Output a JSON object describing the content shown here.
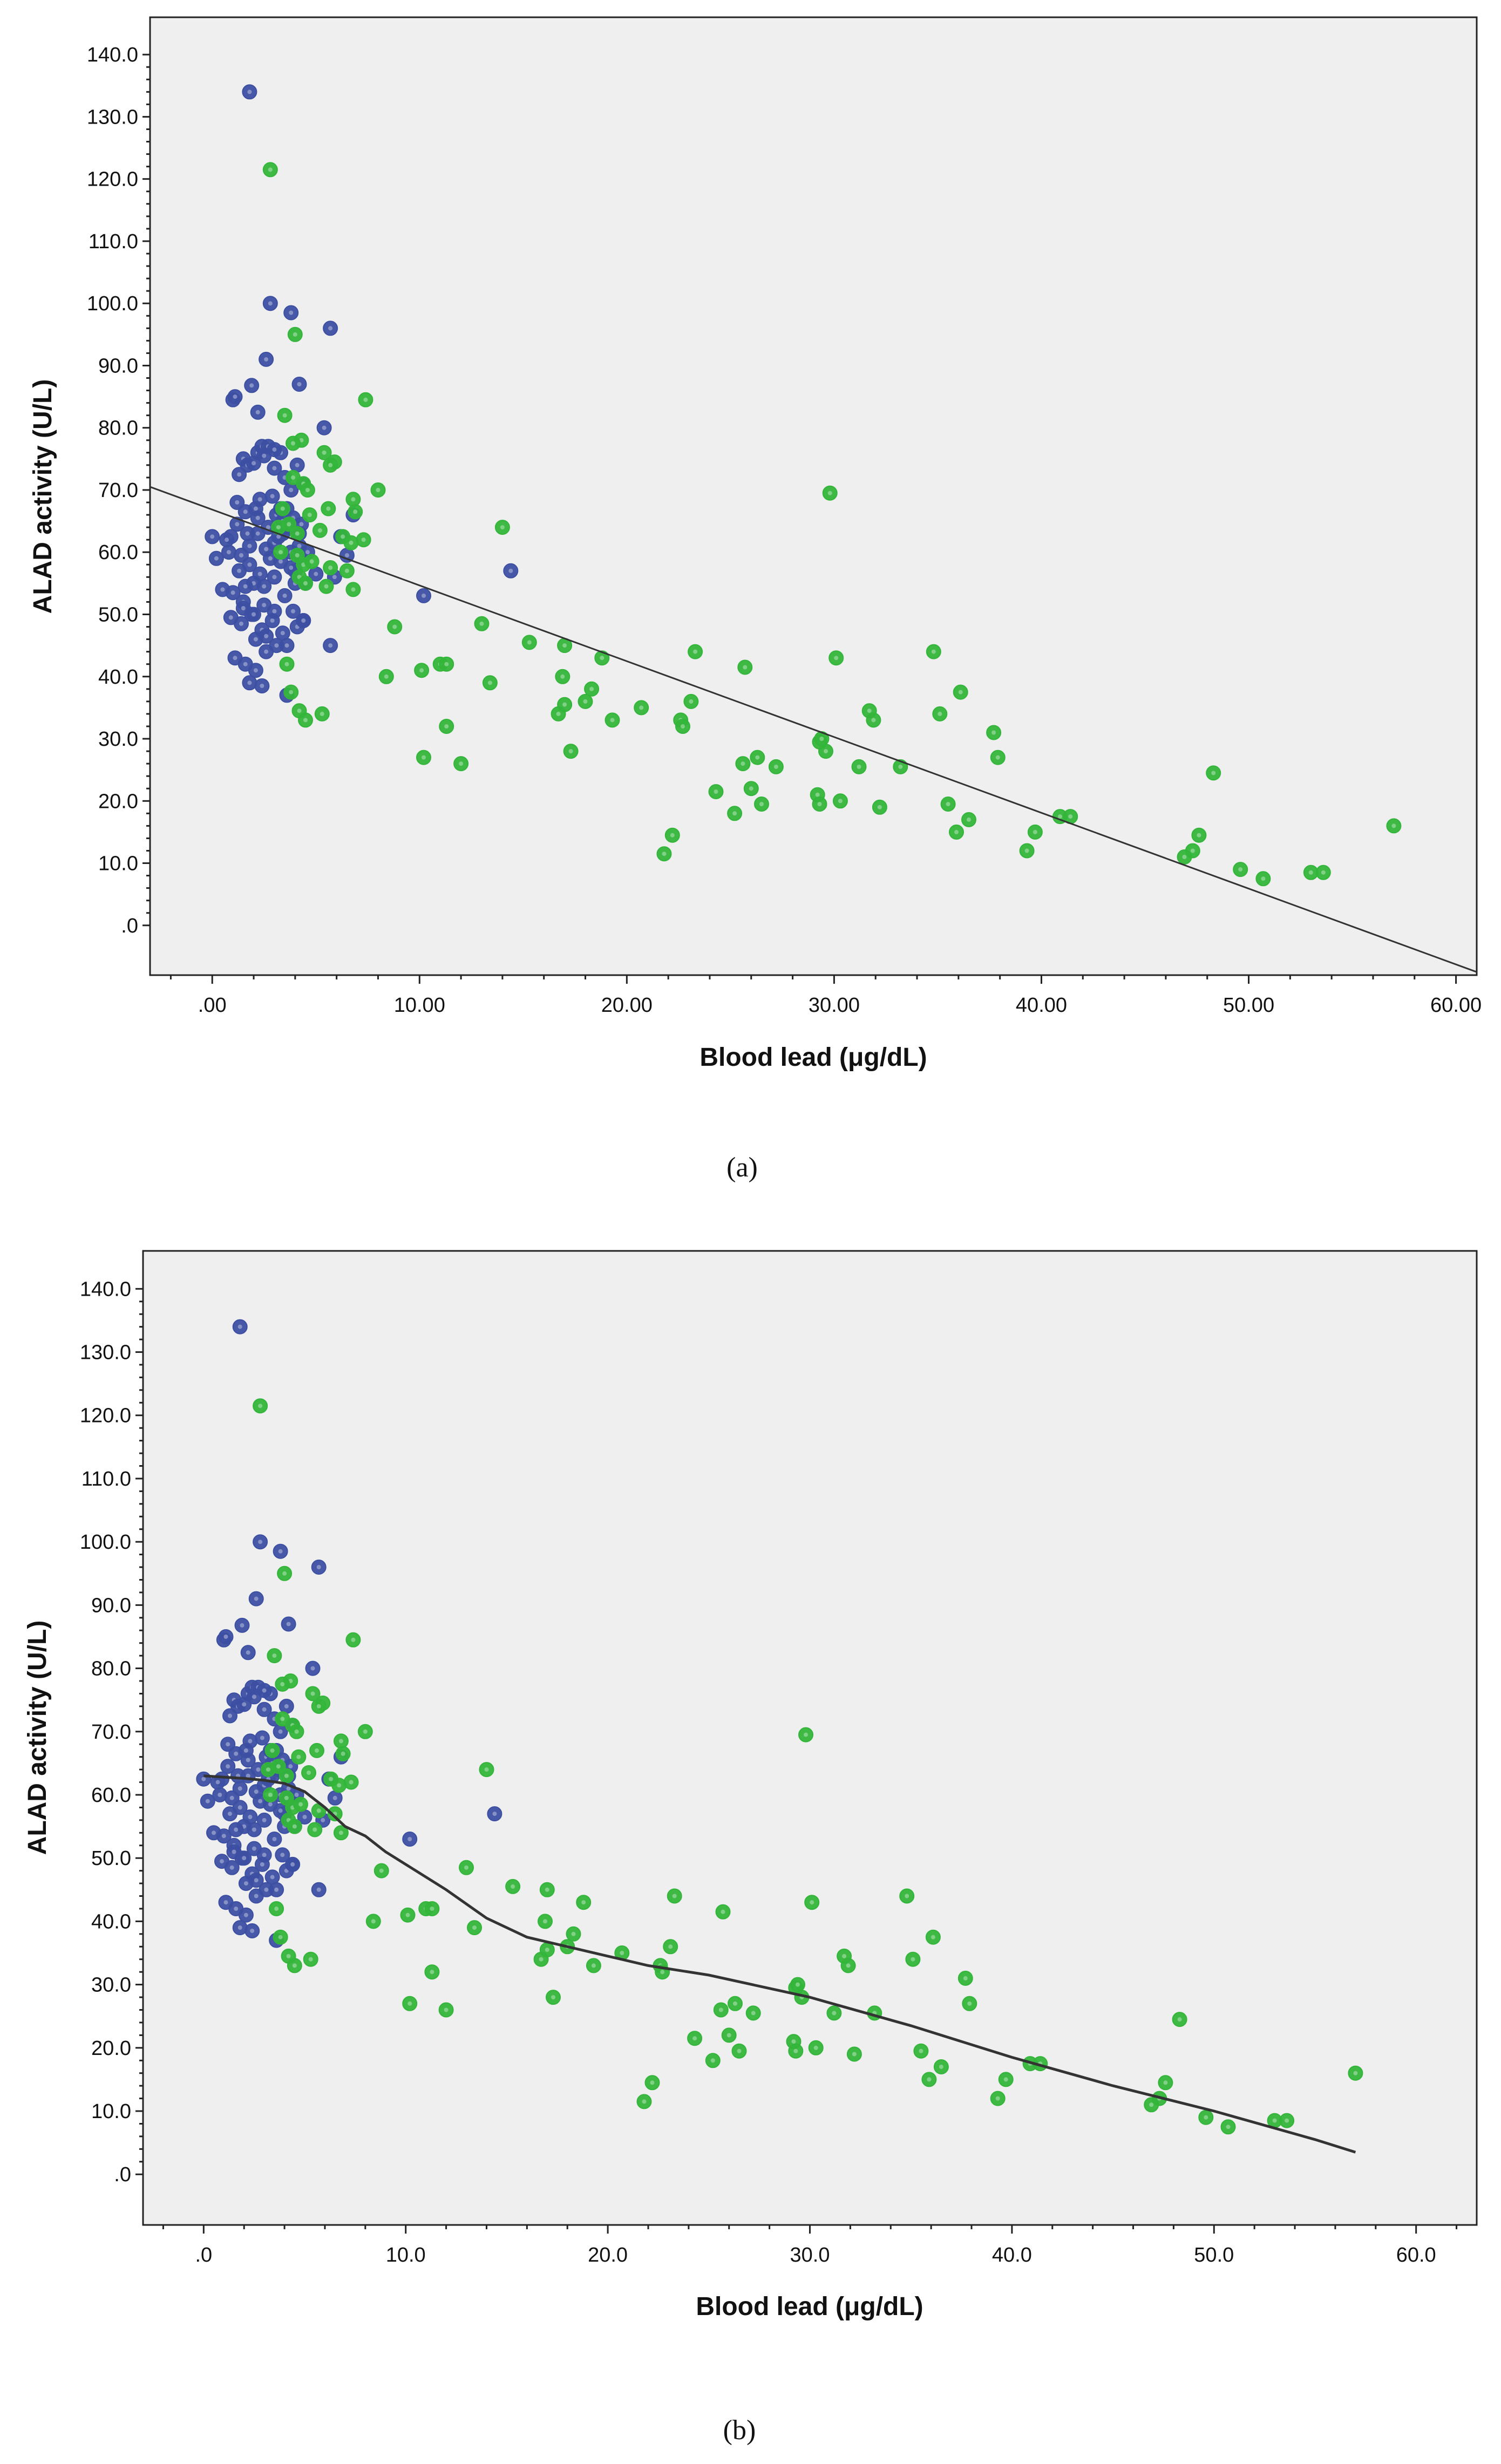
{
  "colors": {
    "group1": "#3c4fa2",
    "group2": "#33b53a",
    "fit": "#333333",
    "background": "#efefef"
  },
  "chart_data": [
    {
      "type": "scatter",
      "panel": "a",
      "fit": "linear",
      "xlabel": "Blood lead (μg/dL)",
      "ylabel": "ALAD activity (U/L)",
      "xlim": [
        -3,
        61
      ],
      "ylim": [
        -8,
        146
      ],
      "xticks": [
        0,
        10,
        20,
        30,
        40,
        50,
        60
      ],
      "xtick_labels": [
        ".00",
        "10.00",
        "20.00",
        "30.00",
        "40.00",
        "50.00",
        "60.00"
      ],
      "yticks": [
        0,
        10,
        20,
        30,
        40,
        50,
        60,
        70,
        80,
        90,
        100,
        110,
        120,
        130,
        140
      ],
      "ytick_labels": [
        ".0",
        "10.0",
        "20.0",
        "30.0",
        "40.0",
        "50.0",
        "60.0",
        "70.0",
        "80.0",
        "90.0",
        "100.0",
        "110.0",
        "120.0",
        "130.0",
        "140.0"
      ],
      "fit_line": {
        "x": [
          -3,
          61
        ],
        "y": [
          70.5,
          -7.5
        ]
      },
      "label_display": "(a)",
      "caption": "a"
    },
    {
      "type": "scatter",
      "panel": "b",
      "fit": "loess",
      "xlabel": "Blood lead (μg/dL)",
      "ylabel": "ALAD activity (U/L)",
      "xlim": [
        -3,
        63
      ],
      "ylim": [
        -8,
        146
      ],
      "xticks": [
        0,
        10,
        20,
        30,
        40,
        50,
        60
      ],
      "xtick_labels": [
        ".0",
        "10.0",
        "20.0",
        "30.0",
        "40.0",
        "50.0",
        "60.0"
      ],
      "yticks": [
        0,
        10,
        20,
        30,
        40,
        50,
        60,
        70,
        80,
        90,
        100,
        110,
        120,
        130,
        140
      ],
      "ytick_labels": [
        ".0",
        "10.0",
        "20.0",
        "30.0",
        "40.0",
        "50.0",
        "60.0",
        "70.0",
        "80.0",
        "90.0",
        "100.0",
        "110.0",
        "120.0",
        "130.0",
        "140.0"
      ],
      "fit_line": {
        "x": [
          0,
          1,
          2,
          3,
          4,
          5,
          6,
          7,
          8,
          9,
          10,
          12,
          14,
          16,
          18,
          20,
          22,
          25,
          30,
          35,
          40,
          45,
          50,
          55,
          57
        ],
        "y": [
          63,
          62.8,
          62.6,
          62.3,
          61.8,
          60.5,
          58,
          55,
          53.5,
          51,
          49,
          45,
          40.5,
          37.5,
          36,
          34.5,
          33,
          31.5,
          28,
          23.5,
          18.5,
          14,
          10,
          5.5,
          3.5
        ]
      },
      "label_display": "(b)",
      "caption": "b"
    }
  ],
  "points_group1": {
    "x": [
      1.8,
      2.8,
      3.8,
      2.6,
      5.7,
      4.2,
      1.9,
      1.0,
      1.1,
      0.9,
      1.3,
      1.5,
      1.7,
      2.0,
      2.2,
      2.4,
      2.5,
      2.7,
      3.0,
      3.3,
      3.5,
      3.8,
      4.1,
      4.4,
      1.2,
      1.6,
      2.1,
      2.3,
      2.9,
      3.1,
      3.4,
      3.6,
      3.9,
      4.3,
      0.0,
      0.2,
      0.8,
      1.4,
      1.8,
      2.2,
      2.6,
      3.0,
      3.4,
      3.8,
      4.2,
      0.5,
      1.0,
      1.5,
      2.0,
      2.5,
      3.0,
      3.5,
      4.0,
      4.5,
      0.9,
      1.4,
      1.9,
      2.4,
      2.9,
      3.4,
      3.9,
      4.4,
      1.1,
      1.6,
      2.1,
      2.6,
      3.1,
      3.6,
      4.1,
      0.7,
      1.2,
      1.7,
      2.2,
      2.7,
      3.2,
      3.7,
      4.2,
      1.3,
      1.8,
      2.3,
      2.8,
      3.3,
      3.8,
      4.3,
      1.5,
      2.0,
      2.5,
      3.0,
      1.6,
      2.1,
      2.6,
      1.8,
      2.4,
      3.6,
      4.0,
      4.4,
      5.0,
      5.4,
      5.9,
      6.5,
      6.2,
      6.8,
      5.7,
      10.2,
      14.4,
      3.0,
      3.3,
      2.2,
      4.6
    ],
    "y": [
      134,
      100,
      98.5,
      91,
      96,
      87,
      86.8,
      84.5,
      85,
      62.5,
      72.5,
      75,
      74,
      74.3,
      76,
      77,
      75.5,
      77,
      73.5,
      76,
      72,
      70,
      74,
      71,
      68,
      66.5,
      67,
      68.5,
      69,
      66,
      65,
      67,
      65.5,
      64.5,
      62.5,
      59,
      60,
      59.5,
      61,
      63,
      60.5,
      61.5,
      63,
      60,
      61,
      54,
      53.5,
      52,
      55,
      54.5,
      56,
      53,
      57,
      55,
      49.5,
      48.5,
      50,
      47.5,
      49,
      47,
      50.5,
      49,
      43,
      42,
      41,
      44,
      45,
      45,
      48,
      62,
      64.5,
      63,
      65.5,
      64,
      62.5,
      64,
      63,
      57,
      58,
      56.5,
      59,
      58.5,
      57.5,
      59,
      51,
      50,
      51.5,
      50.5,
      54.5,
      46,
      46.5,
      39,
      38.5,
      37,
      55,
      49,
      56.5,
      80,
      56,
      59.5,
      62.5,
      66,
      45,
      53,
      57,
      76.5,
      67,
      82.5,
      60
    ],
    "name": "group1"
  },
  "points_group2": {
    "x": [
      2.8,
      4.0,
      7.4,
      3.5,
      4.3,
      3.9,
      5.4,
      5.9,
      5.7,
      3.9,
      4.4,
      4.6,
      6.8,
      8.0,
      3.4,
      5.6,
      6.9,
      4.7,
      3.2,
      3.7,
      4.1,
      5.2,
      6.3,
      6.7,
      7.3,
      4.4,
      4.8,
      5.7,
      6.5,
      8.8,
      3.3,
      4.1,
      4.2,
      4.5,
      5.5,
      6.8,
      8.4,
      3.6,
      3.8,
      4.2,
      4.5,
      5.3,
      10.1,
      11.0,
      11.3,
      13.0,
      13.4,
      14.0,
      15.3,
      16.7,
      16.9,
      17.0,
      17.0,
      17.3,
      18.0,
      18.3,
      18.8,
      19.3,
      20.7,
      21.8,
      22.2,
      22.6,
      22.7,
      23.1,
      23.3,
      24.3,
      25.2,
      25.6,
      25.7,
      26.0,
      26.3,
      26.5,
      27.2,
      29.3,
      29.4,
      29.8,
      29.2,
      29.3,
      29.6,
      30.1,
      30.3,
      31.2,
      31.7,
      31.9,
      32.2,
      33.2,
      34.8,
      35.1,
      35.5,
      35.9,
      36.1,
      36.5,
      37.7,
      37.9,
      39.3,
      39.7,
      40.9,
      41.4,
      46.9,
      47.3,
      47.6,
      48.3,
      49.6,
      50.7,
      53.0,
      53.6,
      57.0,
      10.2,
      11.3,
      12.0
    ],
    "y": [
      121.5,
      95,
      84.5,
      82,
      78,
      77.5,
      76,
      74.5,
      74,
      72,
      71,
      70,
      68.5,
      70,
      67,
      67,
      66.5,
      66,
      64,
      64.5,
      63,
      63.5,
      62.5,
      61.5,
      62,
      58,
      58.5,
      57.5,
      57,
      48,
      60,
      59.5,
      56,
      55,
      54.5,
      54,
      40,
      42,
      37.5,
      34.5,
      33,
      34,
      41,
      42,
      32,
      48.5,
      39,
      64,
      45.5,
      34,
      40,
      45,
      35.5,
      28,
      36,
      38,
      43,
      33,
      35,
      11.5,
      14.5,
      33,
      32,
      36,
      44,
      21.5,
      18,
      26,
      41.5,
      22,
      27,
      19.5,
      25.5,
      29.5,
      30,
      69.5,
      21,
      19.5,
      28,
      43,
      20,
      25.5,
      34.5,
      33,
      19,
      25.5,
      44,
      34,
      19.5,
      15,
      37.5,
      17,
      31,
      27,
      12,
      15,
      17.5,
      17.5,
      11,
      12,
      14.5,
      24.5,
      9,
      7.5,
      8.5,
      8.5,
      16,
      27,
      42,
      26
    ],
    "name": "group2"
  }
}
